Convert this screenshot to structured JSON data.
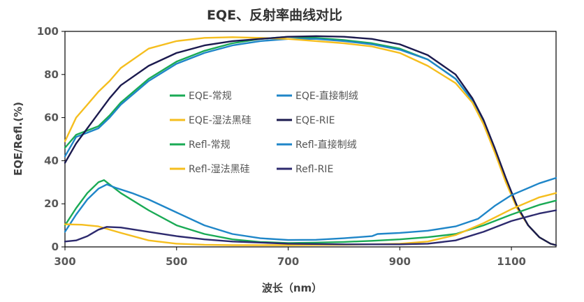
{
  "chart_data": {
    "type": "line",
    "title": "EQE、反射率曲线对比",
    "xlabel": "波长（nm）",
    "ylabel": "EQE/Refl.(%)",
    "xlim": [
      300,
      1180
    ],
    "ylim": [
      0,
      100
    ],
    "xticks": [
      "300",
      "500",
      "700",
      "900",
      "1100"
    ],
    "yticks": [
      "0",
      "20",
      "40",
      "60",
      "80",
      "100"
    ],
    "grid": false,
    "legend_position": "inside-left",
    "series": [
      {
        "name": "EQE-常规",
        "color": "#1aaa55",
        "points": [
          [
            300,
            46
          ],
          [
            320,
            52
          ],
          [
            340,
            54
          ],
          [
            360,
            56
          ],
          [
            380,
            61
          ],
          [
            400,
            67
          ],
          [
            450,
            78
          ],
          [
            500,
            86
          ],
          [
            550,
            91
          ],
          [
            600,
            94.5
          ],
          [
            650,
            96.5
          ],
          [
            700,
            97.5
          ],
          [
            750,
            97
          ],
          [
            800,
            96
          ],
          [
            850,
            94.5
          ],
          [
            900,
            92
          ],
          [
            950,
            87
          ],
          [
            1000,
            78
          ],
          [
            1030,
            68
          ],
          [
            1050,
            58
          ],
          [
            1070,
            45
          ],
          [
            1090,
            31
          ],
          [
            1110,
            19
          ],
          [
            1130,
            10
          ],
          [
            1150,
            4.5
          ],
          [
            1170,
            1.5
          ],
          [
            1180,
            0.8
          ]
        ]
      },
      {
        "name": "EQE-直接制绒",
        "color": "#1f86c8",
        "points": [
          [
            300,
            42
          ],
          [
            320,
            51
          ],
          [
            340,
            53
          ],
          [
            360,
            55
          ],
          [
            380,
            60
          ],
          [
            400,
            66
          ],
          [
            450,
            77
          ],
          [
            500,
            85
          ],
          [
            550,
            90
          ],
          [
            600,
            93.5
          ],
          [
            650,
            95.5
          ],
          [
            700,
            96.5
          ],
          [
            750,
            96.5
          ],
          [
            800,
            95.5
          ],
          [
            850,
            94
          ],
          [
            900,
            91.5
          ],
          [
            950,
            87
          ],
          [
            1000,
            78
          ],
          [
            1030,
            68
          ],
          [
            1050,
            58
          ],
          [
            1070,
            45
          ],
          [
            1090,
            31
          ],
          [
            1110,
            19
          ],
          [
            1130,
            10
          ],
          [
            1150,
            4.5
          ],
          [
            1170,
            1.5
          ],
          [
            1180,
            0.8
          ]
        ]
      },
      {
        "name": "EQE-湿法黑硅",
        "color": "#f5be1e",
        "points": [
          [
            300,
            49
          ],
          [
            320,
            60
          ],
          [
            340,
            66
          ],
          [
            360,
            72
          ],
          [
            380,
            77
          ],
          [
            400,
            83
          ],
          [
            450,
            92
          ],
          [
            500,
            95.5
          ],
          [
            550,
            97
          ],
          [
            600,
            97.3
          ],
          [
            650,
            97
          ],
          [
            700,
            96.5
          ],
          [
            750,
            95.5
          ],
          [
            800,
            94.5
          ],
          [
            850,
            93
          ],
          [
            900,
            90
          ],
          [
            950,
            84
          ],
          [
            1000,
            76
          ],
          [
            1030,
            67
          ],
          [
            1050,
            57
          ],
          [
            1070,
            44
          ],
          [
            1090,
            30
          ],
          [
            1110,
            18
          ],
          [
            1130,
            10
          ],
          [
            1150,
            4.5
          ],
          [
            1170,
            1.5
          ],
          [
            1180,
            0.8
          ]
        ]
      },
      {
        "name": "EQE-RIE",
        "color": "#1b1a4e",
        "points": [
          [
            300,
            39
          ],
          [
            320,
            48
          ],
          [
            340,
            55
          ],
          [
            360,
            62
          ],
          [
            380,
            69
          ],
          [
            400,
            75
          ],
          [
            450,
            84
          ],
          [
            500,
            90
          ],
          [
            550,
            93.5
          ],
          [
            600,
            95.5
          ],
          [
            650,
            96.5
          ],
          [
            700,
            97.5
          ],
          [
            750,
            97.8
          ],
          [
            800,
            97.5
          ],
          [
            850,
            96.5
          ],
          [
            900,
            94
          ],
          [
            950,
            89
          ],
          [
            1000,
            80
          ],
          [
            1030,
            69
          ],
          [
            1050,
            59
          ],
          [
            1070,
            46
          ],
          [
            1090,
            32
          ],
          [
            1110,
            19
          ],
          [
            1130,
            10
          ],
          [
            1150,
            4.5
          ],
          [
            1170,
            1.5
          ],
          [
            1180,
            0.8
          ]
        ]
      },
      {
        "name": "Refl-常规",
        "color": "#1aaa55",
        "points": [
          [
            300,
            10
          ],
          [
            320,
            18
          ],
          [
            340,
            25
          ],
          [
            360,
            30
          ],
          [
            370,
            31
          ],
          [
            380,
            29
          ],
          [
            400,
            25
          ],
          [
            450,
            17
          ],
          [
            500,
            10
          ],
          [
            550,
            6
          ],
          [
            600,
            3.5
          ],
          [
            650,
            2.3
          ],
          [
            700,
            1.8
          ],
          [
            750,
            2
          ],
          [
            800,
            2.3
          ],
          [
            850,
            2.8
          ],
          [
            900,
            3.5
          ],
          [
            950,
            4.5
          ],
          [
            1000,
            6
          ],
          [
            1050,
            10
          ],
          [
            1100,
            15
          ],
          [
            1150,
            19.5
          ],
          [
            1180,
            21.5
          ]
        ]
      },
      {
        "name": "Refl-直接制绒",
        "color": "#1f86c8",
        "points": [
          [
            300,
            7
          ],
          [
            320,
            15
          ],
          [
            340,
            22
          ],
          [
            360,
            27
          ],
          [
            375,
            29
          ],
          [
            390,
            27.5
          ],
          [
            420,
            25
          ],
          [
            450,
            22
          ],
          [
            500,
            16
          ],
          [
            550,
            10
          ],
          [
            600,
            6
          ],
          [
            650,
            4
          ],
          [
            700,
            3.2
          ],
          [
            750,
            3.3
          ],
          [
            800,
            4
          ],
          [
            850,
            5
          ],
          [
            860,
            6
          ],
          [
            900,
            6.5
          ],
          [
            950,
            7.5
          ],
          [
            1000,
            9.5
          ],
          [
            1040,
            13
          ],
          [
            1070,
            19
          ],
          [
            1100,
            24
          ],
          [
            1150,
            29.5
          ],
          [
            1180,
            32
          ]
        ]
      },
      {
        "name": "Refl-湿法黑硅",
        "color": "#f5be1e",
        "points": [
          [
            300,
            10.5
          ],
          [
            330,
            10.3
          ],
          [
            360,
            9.5
          ],
          [
            400,
            6.5
          ],
          [
            450,
            3
          ],
          [
            500,
            1.5
          ],
          [
            550,
            1
          ],
          [
            600,
            0.8
          ],
          [
            700,
            0.8
          ],
          [
            800,
            1
          ],
          [
            850,
            1.2
          ],
          [
            900,
            1.5
          ],
          [
            950,
            2.5
          ],
          [
            1000,
            5.5
          ],
          [
            1050,
            11
          ],
          [
            1100,
            17.5
          ],
          [
            1150,
            23
          ],
          [
            1180,
            25
          ]
        ]
      },
      {
        "name": "Refl-RIE",
        "color": "#2d2a6e",
        "points": [
          [
            300,
            2.5
          ],
          [
            320,
            3
          ],
          [
            340,
            5
          ],
          [
            360,
            8
          ],
          [
            375,
            9.3
          ],
          [
            400,
            9
          ],
          [
            450,
            7
          ],
          [
            500,
            5
          ],
          [
            550,
            3.5
          ],
          [
            600,
            2.5
          ],
          [
            650,
            2
          ],
          [
            700,
            1.5
          ],
          [
            800,
            1.2
          ],
          [
            900,
            1.2
          ],
          [
            950,
            1.5
          ],
          [
            1000,
            3
          ],
          [
            1050,
            7
          ],
          [
            1100,
            12
          ],
          [
            1150,
            15.5
          ],
          [
            1180,
            17
          ]
        ]
      }
    ]
  }
}
